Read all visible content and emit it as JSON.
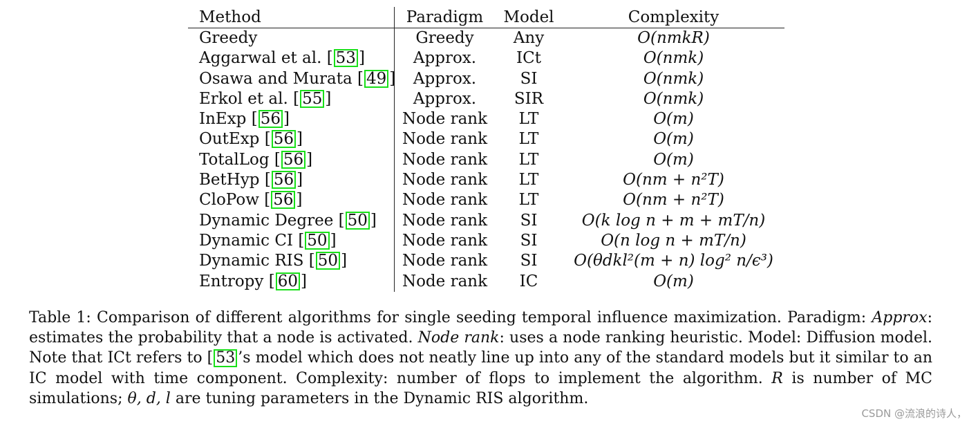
{
  "table": {
    "headers": [
      "Method",
      "Paradigm",
      "Model",
      "Complexity"
    ],
    "rows": [
      {
        "method": "Greedy",
        "ref": "",
        "paradigm": "Greedy",
        "model": "Any",
        "complexity": "O(nmkR)"
      },
      {
        "method": "Aggarwal et al. ",
        "ref": "53",
        "paradigm": "Approx.",
        "model": "ICt",
        "complexity": "O(nmk)"
      },
      {
        "method": "Osawa and Murata ",
        "ref": "49",
        "paradigm": "Approx.",
        "model": "SI",
        "complexity": "O(nmk)"
      },
      {
        "method": "Erkol et al. ",
        "ref": "55",
        "paradigm": "Approx.",
        "model": "SIR",
        "complexity": "O(nmk)"
      },
      {
        "method": "InExp ",
        "ref": "56",
        "paradigm": "Node rank",
        "model": "LT",
        "complexity": "O(m)"
      },
      {
        "method": "OutExp ",
        "ref": "56",
        "paradigm": "Node rank",
        "model": "LT",
        "complexity": "O(m)"
      },
      {
        "method": "TotalLog ",
        "ref": "56",
        "paradigm": "Node rank",
        "model": "LT",
        "complexity": "O(m)"
      },
      {
        "method": "BetHyp ",
        "ref": "56",
        "paradigm": "Node rank",
        "model": "LT",
        "complexity": "O(nm + n²T)"
      },
      {
        "method": "CloPow ",
        "ref": "56",
        "paradigm": "Node rank",
        "model": "LT",
        "complexity": "O(nm + n²T)"
      },
      {
        "method": "Dynamic Degree ",
        "ref": "50",
        "paradigm": "Node rank",
        "model": "SI",
        "complexity": "O(k log n + m + mT/n)"
      },
      {
        "method": "Dynamic CI ",
        "ref": "50",
        "paradigm": "Node rank",
        "model": "SI",
        "complexity": "O(n log n + mT/n)"
      },
      {
        "method": "Dynamic RIS ",
        "ref": "50",
        "paradigm": "Node rank",
        "model": "SI",
        "complexity": "O(θdkl²(m + n) log² n/ϵ³)"
      },
      {
        "method": "Entropy ",
        "ref": "60",
        "paradigm": "Node rank",
        "model": "IC",
        "complexity": "O(m)"
      }
    ]
  },
  "caption": {
    "p1": "Table 1: Comparison of different algorithms for single seeding temporal influence maximization. Paradigm: ",
    "e1": "Approx",
    "p2": ": estimates the probability that a node is activated. ",
    "e2": "Node rank",
    "p3": ": uses a node ranking heuristic. Model: Diffusion model. Note that ICt refers to ",
    "ref": "53",
    "p4": "’s model which does not neatly line up into any of the standard models but it similar to an IC model with time component. Complexity: number of flops to implement the algorithm. ",
    "e3": "R",
    "p5": " is number of MC simulations; ",
    "e4": "θ, d, l",
    "p6": " are tuning parameters in the Dynamic RIS algorithm."
  },
  "watermark": "CSDN @流浪的诗人，"
}
